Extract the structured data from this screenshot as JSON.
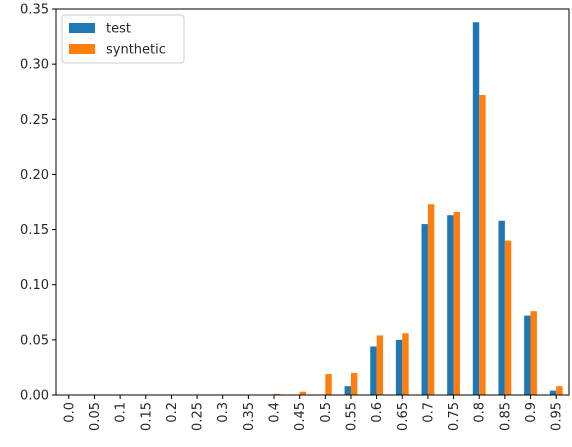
{
  "chart_data": {
    "type": "bar",
    "title": "",
    "xlabel": "",
    "ylabel": "",
    "categories": [
      "0.0",
      "0.05",
      "0.1",
      "0.15",
      "0.2",
      "0.25",
      "0.3",
      "0.35",
      "0.4",
      "0.45",
      "0.5",
      "0.55",
      "0.6",
      "0.65",
      "0.7",
      "0.75",
      "0.8",
      "0.85",
      "0.9",
      "0.95"
    ],
    "series": [
      {
        "name": "test",
        "color": "#1f77b4",
        "values": [
          0,
          0,
          0,
          0,
          0,
          0,
          0,
          0,
          0,
          0,
          0,
          0.008,
          0.044,
          0.05,
          0.155,
          0.163,
          0.338,
          0.158,
          0.072,
          0.004
        ]
      },
      {
        "name": "synthetic",
        "color": "#ff7f0e",
        "values": [
          0,
          0,
          0,
          0,
          0,
          0,
          0,
          0,
          0.001,
          0.003,
          0.019,
          0.02,
          0.054,
          0.056,
          0.173,
          0.166,
          0.272,
          0.14,
          0.076,
          0.008
        ]
      }
    ],
    "ylim": [
      0,
      0.35
    ],
    "yticks": [
      "0.00",
      "0.05",
      "0.10",
      "0.15",
      "0.20",
      "0.25",
      "0.30",
      "0.35"
    ],
    "ytick_values": [
      0,
      0.05,
      0.1,
      0.15,
      0.2,
      0.25,
      0.3,
      0.35
    ],
    "grid": false,
    "legend_position": "top-left"
  }
}
